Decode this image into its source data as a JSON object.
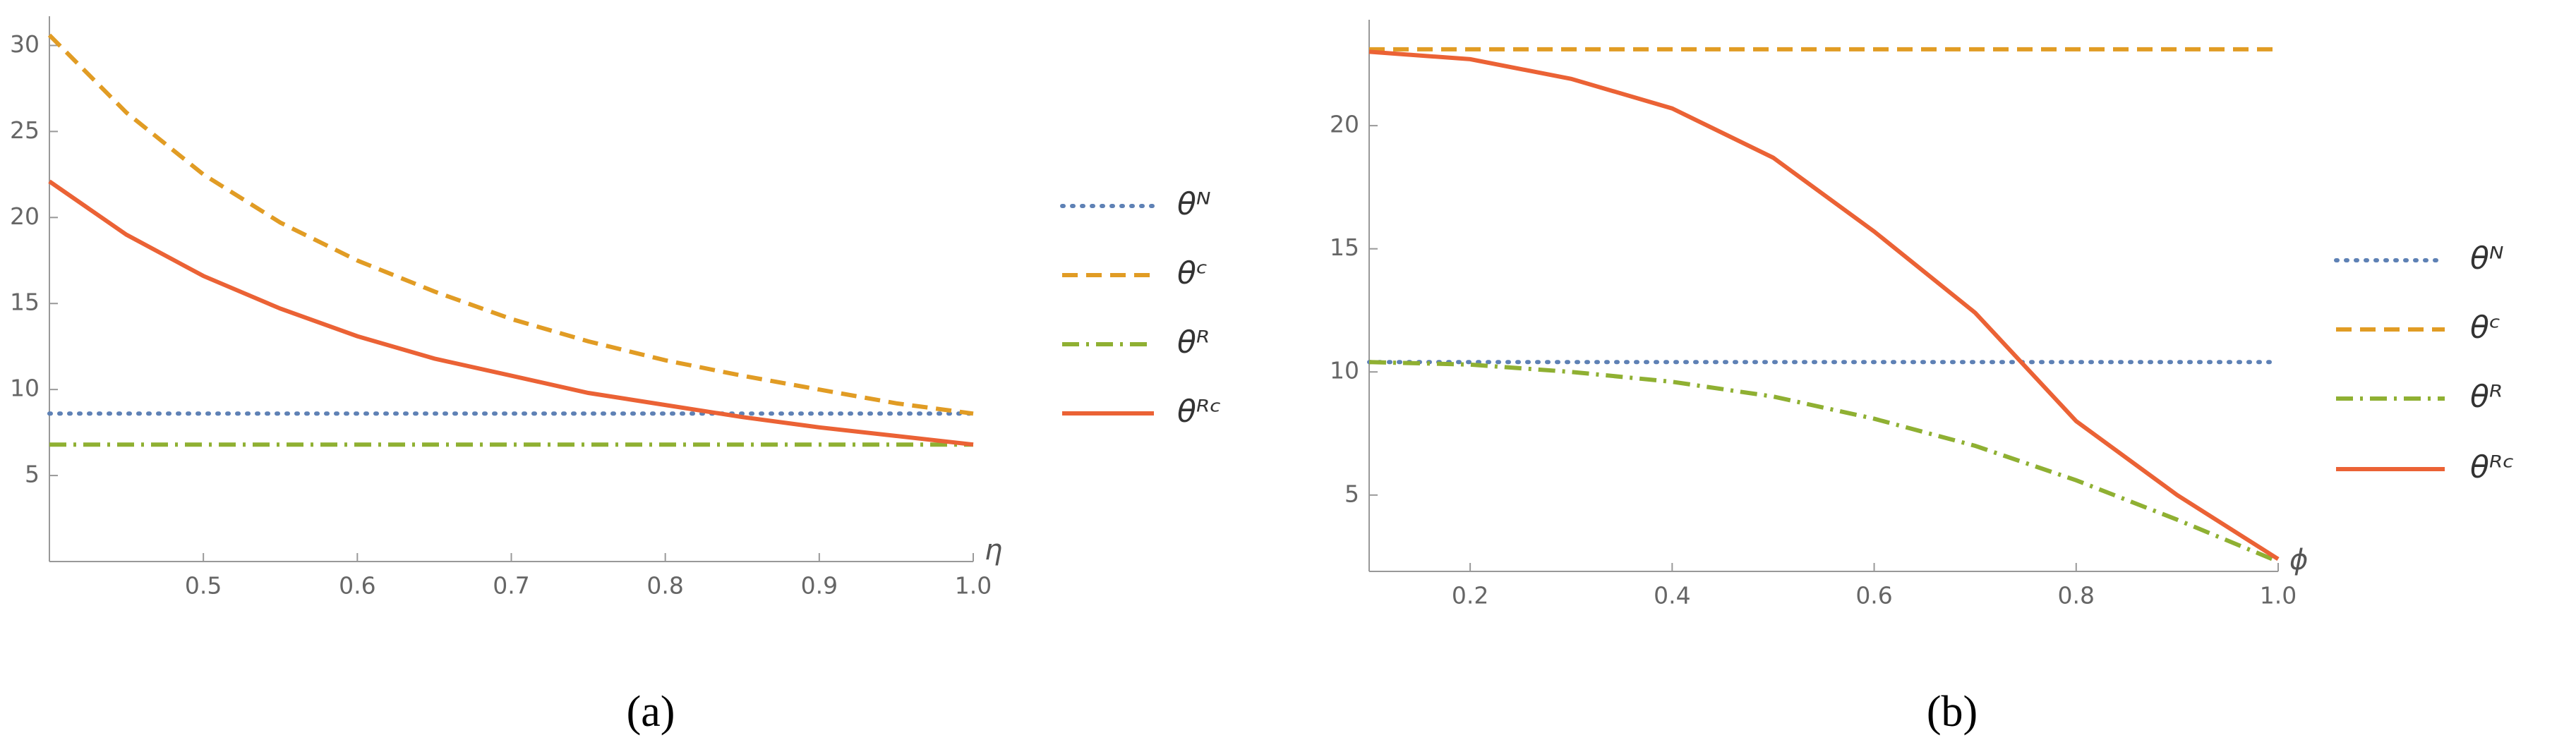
{
  "chart_data": [
    {
      "type": "line",
      "caption": "(a)",
      "x_label": "η",
      "x": [
        0.4,
        0.45,
        0.5,
        0.55,
        0.6,
        0.65,
        0.7,
        0.75,
        0.8,
        0.85,
        0.9,
        0.95,
        1.0
      ],
      "xlim": [
        0.4,
        1.0
      ],
      "ylim": [
        0,
        31.7
      ],
      "xticks": [
        0.5,
        0.6,
        0.7,
        0.8,
        0.9,
        {
          "value": 1,
          "label": "1.0"
        }
      ],
      "yticks": [
        5,
        10,
        15,
        20,
        25,
        30
      ],
      "series": [
        {
          "name": "θᴺ",
          "color": "#5e81b5",
          "style": "dotted",
          "values": [
            8.6,
            8.6,
            8.6,
            8.6,
            8.6,
            8.6,
            8.6,
            8.6,
            8.6,
            8.6,
            8.6,
            8.6,
            8.6
          ]
        },
        {
          "name": "θᶜ",
          "color": "#e19c24",
          "style": "dashed",
          "values": [
            30.6,
            26.1,
            22.5,
            19.7,
            17.5,
            15.7,
            14.1,
            12.8,
            11.7,
            10.8,
            10.0,
            9.2,
            8.6
          ]
        },
        {
          "name": "θᴿ",
          "color": "#8fb032",
          "style": "dashdot",
          "values": [
            6.8,
            6.8,
            6.8,
            6.8,
            6.8,
            6.8,
            6.8,
            6.8,
            6.8,
            6.8,
            6.8,
            6.8,
            6.8
          ]
        },
        {
          "name": "θᴿᶜ",
          "color": "#eb6235",
          "style": "solid",
          "values": [
            22.1,
            19.0,
            16.6,
            14.7,
            13.1,
            11.8,
            10.8,
            9.8,
            9.1,
            8.4,
            7.8,
            7.3,
            6.8
          ]
        }
      ]
    },
    {
      "type": "line",
      "caption": "(b)",
      "x_label": "ϕ",
      "x": [
        0.1,
        0.2,
        0.3,
        0.4,
        0.5,
        0.6,
        0.7,
        0.8,
        0.9,
        1.0
      ],
      "xlim": [
        0.1,
        1.0
      ],
      "ylim": [
        1.9,
        24.3
      ],
      "xticks": [
        0.2,
        0.4,
        0.6,
        0.8,
        {
          "value": 1,
          "label": "1.0"
        }
      ],
      "yticks": [
        5,
        10,
        15,
        20
      ],
      "series": [
        {
          "name": "θᴺ",
          "color": "#5e81b5",
          "style": "dotted",
          "values": [
            10.4,
            10.4,
            10.4,
            10.4,
            10.4,
            10.4,
            10.4,
            10.4,
            10.4,
            10.4
          ]
        },
        {
          "name": "θᶜ",
          "color": "#e19c24",
          "style": "dashed",
          "values": [
            23.1,
            23.1,
            23.1,
            23.1,
            23.1,
            23.1,
            23.1,
            23.1,
            23.1,
            23.1
          ]
        },
        {
          "name": "θᴿ",
          "color": "#8fb032",
          "style": "dashdot",
          "values": [
            10.4,
            10.3,
            10.0,
            9.6,
            9.0,
            8.1,
            7.0,
            5.6,
            4.0,
            2.3
          ]
        },
        {
          "name": "θᴿᶜ",
          "color": "#eb6235",
          "style": "solid",
          "values": [
            23.0,
            22.7,
            21.9,
            20.7,
            18.7,
            15.7,
            12.4,
            8.0,
            5.0,
            2.4
          ]
        }
      ]
    }
  ]
}
